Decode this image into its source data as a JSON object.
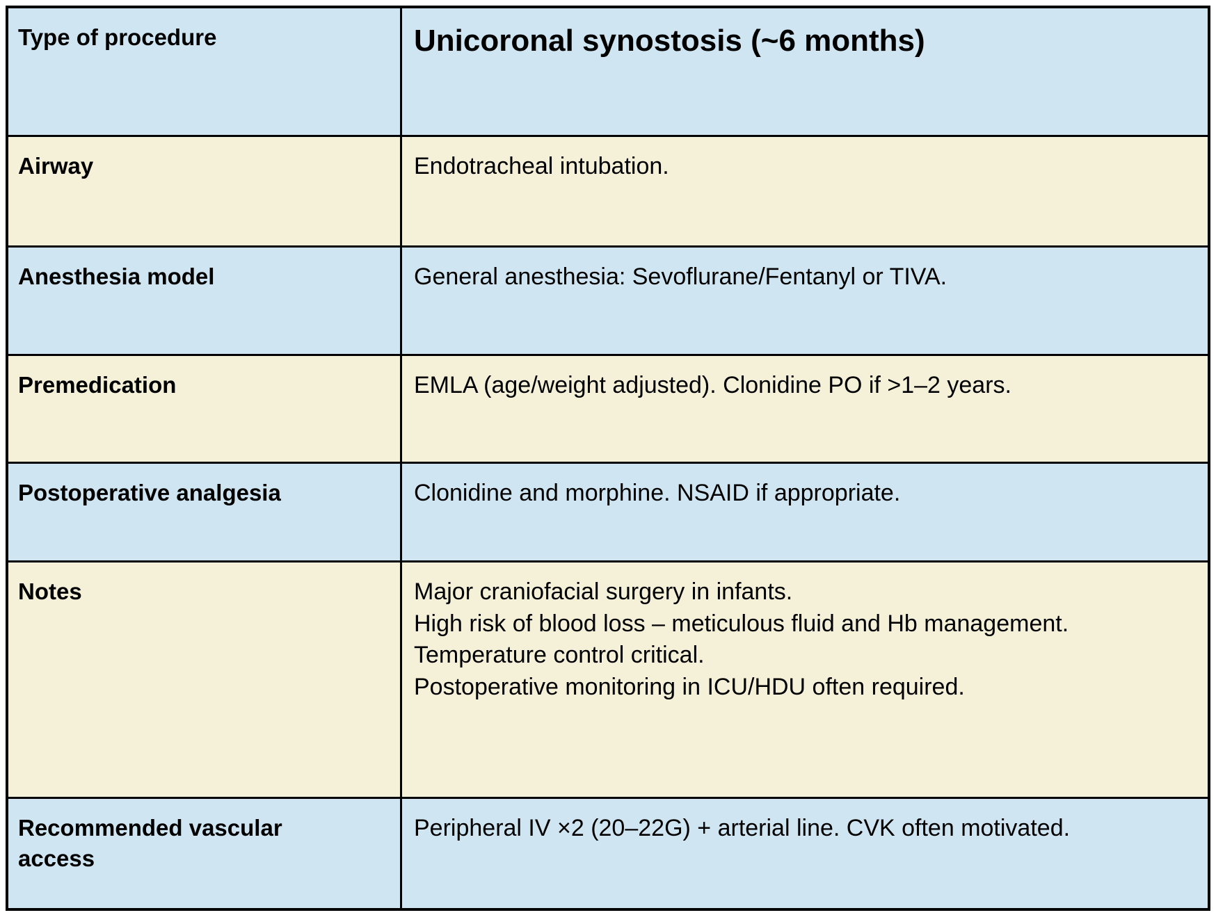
{
  "table": {
    "title": "Unicoronal synostosis (~6 months)",
    "colors": {
      "row_blue": "#cfe6f2",
      "row_cream": "#f5f0d8",
      "border": "#000000",
      "text": "#000000",
      "page_background": "#ffffff"
    },
    "rows": [
      {
        "label": "Type of procedure",
        "value": "Unicoronal synostosis (~6 months)"
      },
      {
        "label": "Airway",
        "value": "Endotracheal intubation."
      },
      {
        "label": "Anesthesia model",
        "value": "General anesthesia: Sevoflurane/Fentanyl or TIVA."
      },
      {
        "label": "Premedication",
        "value": "EMLA (age/weight adjusted). Clonidine PO if >1–2 years."
      },
      {
        "label": "Postoperative analgesia",
        "value": "Clonidine and morphine. NSAID if appropriate."
      },
      {
        "label": "Notes",
        "value": "Major craniofacial surgery in infants.\nHigh risk of blood loss – meticulous fluid and Hb management.\nTemperature control critical.\nPostoperative monitoring in ICU/HDU often required."
      },
      {
        "label": "Recommended vascular access",
        "value": "Peripheral IV ×2 (20–22G) + arterial line. CVK often motivated."
      }
    ]
  }
}
